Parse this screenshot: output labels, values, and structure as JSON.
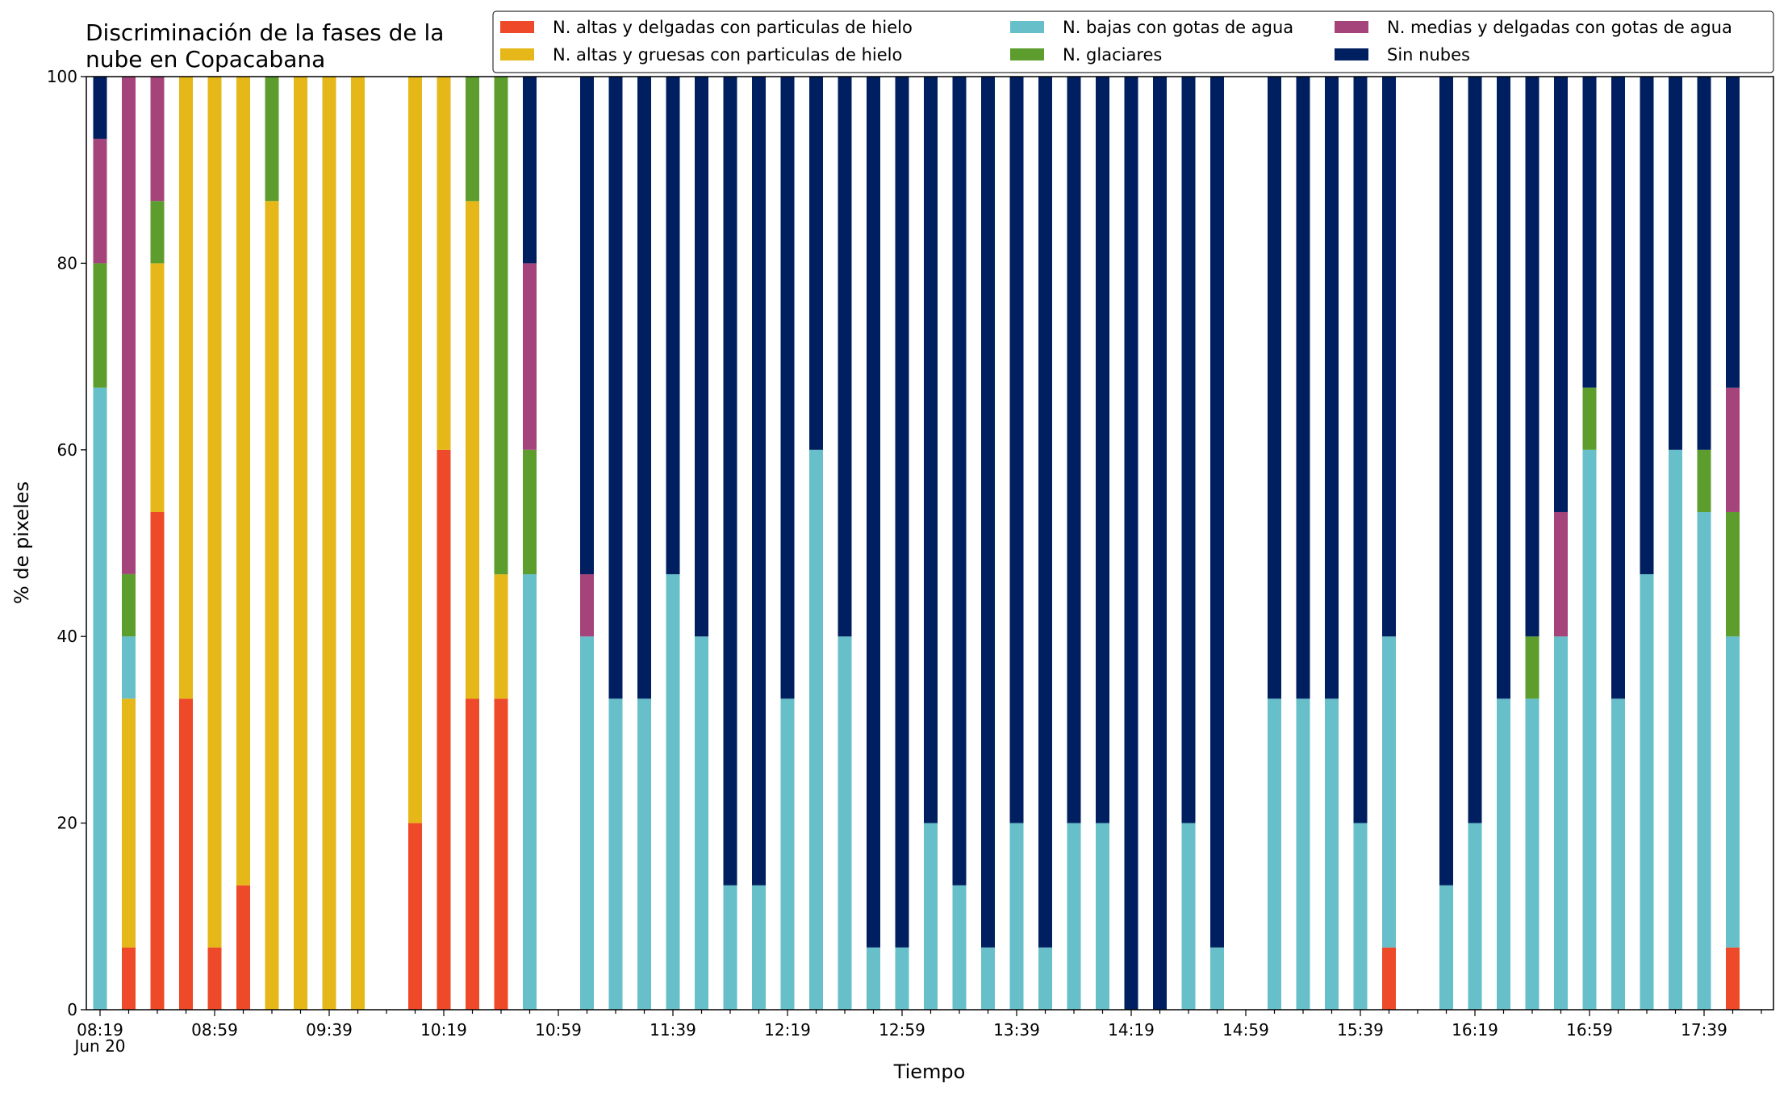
{
  "chart_data": {
    "type": "bar",
    "stacked": true,
    "title": "Discriminación de la fases de la nube en Copacabana",
    "title_lines": [
      "Discriminación de la fases de la",
      "nube en Copacabana"
    ],
    "xlabel": "Tiempo",
    "ylabel": "% de pixeles",
    "ylim": [
      0,
      100
    ],
    "yticks": [
      "0",
      "20",
      "40",
      "60",
      "80",
      "100"
    ],
    "x_start": "08:19",
    "x_interval_minutes": 10,
    "xtick_labels": [
      "08:19",
      "08:59",
      "09:39",
      "10:19",
      "10:59",
      "11:39",
      "12:19",
      "12:59",
      "13:39",
      "14:19",
      "14:59",
      "15:39",
      "16:19",
      "16:59",
      "17:39"
    ],
    "xtick_sublabel": "Jun 20",
    "legend_position": "top-right",
    "grid": false,
    "categories": [
      "08:19",
      "08:29",
      "08:39",
      "08:49",
      "08:59",
      "09:09",
      "09:19",
      "09:29",
      "09:39",
      "09:49",
      "09:59",
      "10:09",
      "10:19",
      "10:29",
      "10:39",
      "10:49",
      "10:59",
      "11:09",
      "11:19",
      "11:29",
      "11:39",
      "11:49",
      "11:59",
      "12:09",
      "12:19",
      "12:29",
      "12:39",
      "12:49",
      "12:59",
      "13:09",
      "13:19",
      "13:29",
      "13:39",
      "13:49",
      "13:59",
      "14:09",
      "14:19",
      "14:29",
      "14:39",
      "14:49",
      "14:59",
      "15:09",
      "15:19",
      "15:29",
      "15:39",
      "15:49",
      "15:59",
      "16:09",
      "16:19",
      "16:29",
      "16:39",
      "16:49",
      "16:59",
      "17:09",
      "17:19",
      "17:29",
      "17:39",
      "17:49"
    ],
    "series": [
      {
        "name": "N. altas y delgadas con particulas de hielo",
        "color": "#ee4929",
        "values": [
          0,
          6.67,
          53.33,
          33.33,
          6.67,
          13.33,
          0,
          0,
          0,
          0,
          0,
          20,
          60,
          33.33,
          33.33,
          0,
          0,
          0,
          0,
          0,
          0,
          0,
          0,
          0,
          0,
          0,
          0,
          0,
          0,
          0,
          0,
          0,
          0,
          0,
          0,
          0,
          0,
          0,
          0,
          0,
          0,
          0,
          0,
          0,
          0,
          6.67,
          0,
          0,
          0,
          0,
          0,
          0,
          0,
          0,
          0,
          0,
          0,
          6.67
        ]
      },
      {
        "name": "N. altas y gruesas con particulas de hielo",
        "color": "#e5b718",
        "values": [
          0,
          26.67,
          26.67,
          66.67,
          93.33,
          86.67,
          86.67,
          100,
          100,
          100,
          0,
          80,
          40,
          53.33,
          13.33,
          0,
          0,
          0,
          0,
          0,
          0,
          0,
          0,
          0,
          0,
          0,
          0,
          0,
          0,
          0,
          0,
          0,
          0,
          0,
          0,
          0,
          0,
          0,
          0,
          0,
          0,
          0,
          0,
          0,
          0,
          0,
          0,
          0,
          0,
          0,
          0,
          0,
          0,
          0,
          0,
          0,
          0,
          0
        ]
      },
      {
        "name": "N. bajas con gotas de agua",
        "color": "#66bfc9",
        "values": [
          66.67,
          6.67,
          0,
          0,
          0,
          0,
          0,
          0,
          0,
          0,
          0,
          0,
          0,
          0,
          0,
          46.67,
          0,
          40,
          33.33,
          33.33,
          46.67,
          40,
          13.33,
          13.33,
          33.33,
          60,
          40,
          6.67,
          6.67,
          20,
          13.33,
          6.67,
          20,
          6.67,
          20,
          20,
          0,
          0,
          20,
          6.67,
          0,
          33.33,
          33.33,
          33.33,
          20,
          33.33,
          0,
          13.33,
          20,
          33.33,
          33.33,
          40,
          60,
          33.33,
          46.67,
          60,
          53.33,
          33.33
        ]
      },
      {
        "name": "N. glaciares",
        "color": "#5c9d2d",
        "values": [
          13.33,
          6.67,
          6.67,
          0,
          0,
          0,
          13.33,
          0,
          0,
          0,
          0,
          0,
          0,
          13.33,
          53.33,
          13.33,
          0,
          0,
          0,
          0,
          0,
          0,
          0,
          0,
          0,
          0,
          0,
          0,
          0,
          0,
          0,
          0,
          0,
          0,
          0,
          0,
          0,
          0,
          0,
          0,
          0,
          0,
          0,
          0,
          0,
          0,
          0,
          0,
          0,
          0,
          6.67,
          0,
          6.67,
          0,
          0,
          0,
          6.67,
          13.33
        ]
      },
      {
        "name": "N. medias y delgadas con gotas de agua",
        "color": "#a4447a",
        "values": [
          13.33,
          53.33,
          13.33,
          0,
          0,
          0,
          0,
          0,
          0,
          0,
          0,
          0,
          0,
          0,
          0,
          20,
          0,
          6.67,
          0,
          0,
          0,
          0,
          0,
          0,
          0,
          0,
          0,
          0,
          0,
          0,
          0,
          0,
          0,
          0,
          0,
          0,
          0,
          0,
          0,
          0,
          0,
          0,
          0,
          0,
          0,
          0,
          0,
          0,
          0,
          0,
          0,
          13.33,
          0,
          0,
          0,
          0,
          0,
          13.33
        ]
      },
      {
        "name": "Sin nubes",
        "color": "#001f60",
        "values": [
          6.67,
          0,
          0,
          0,
          0,
          0,
          0,
          0,
          0,
          0,
          0,
          0,
          0,
          0,
          0,
          20,
          0,
          53.33,
          66.67,
          66.67,
          53.33,
          60,
          86.67,
          86.67,
          66.67,
          40,
          60,
          93.33,
          93.33,
          80,
          86.67,
          93.33,
          80,
          93.33,
          80,
          80,
          100,
          100,
          80,
          93.33,
          0,
          66.67,
          66.67,
          66.67,
          80,
          60,
          0,
          86.67,
          80,
          66.67,
          60,
          46.67,
          33.33,
          66.67,
          53.33,
          40,
          40,
          33.33
        ]
      }
    ],
    "legend_layout": [
      [
        "N. altas y delgadas con particulas de hielo",
        "N. bajas con gotas de agua",
        "N. medias y delgadas con gotas de agua"
      ],
      [
        "N. altas y gruesas con particulas de hielo",
        "N. glaciares",
        "Sin nubes"
      ]
    ]
  }
}
